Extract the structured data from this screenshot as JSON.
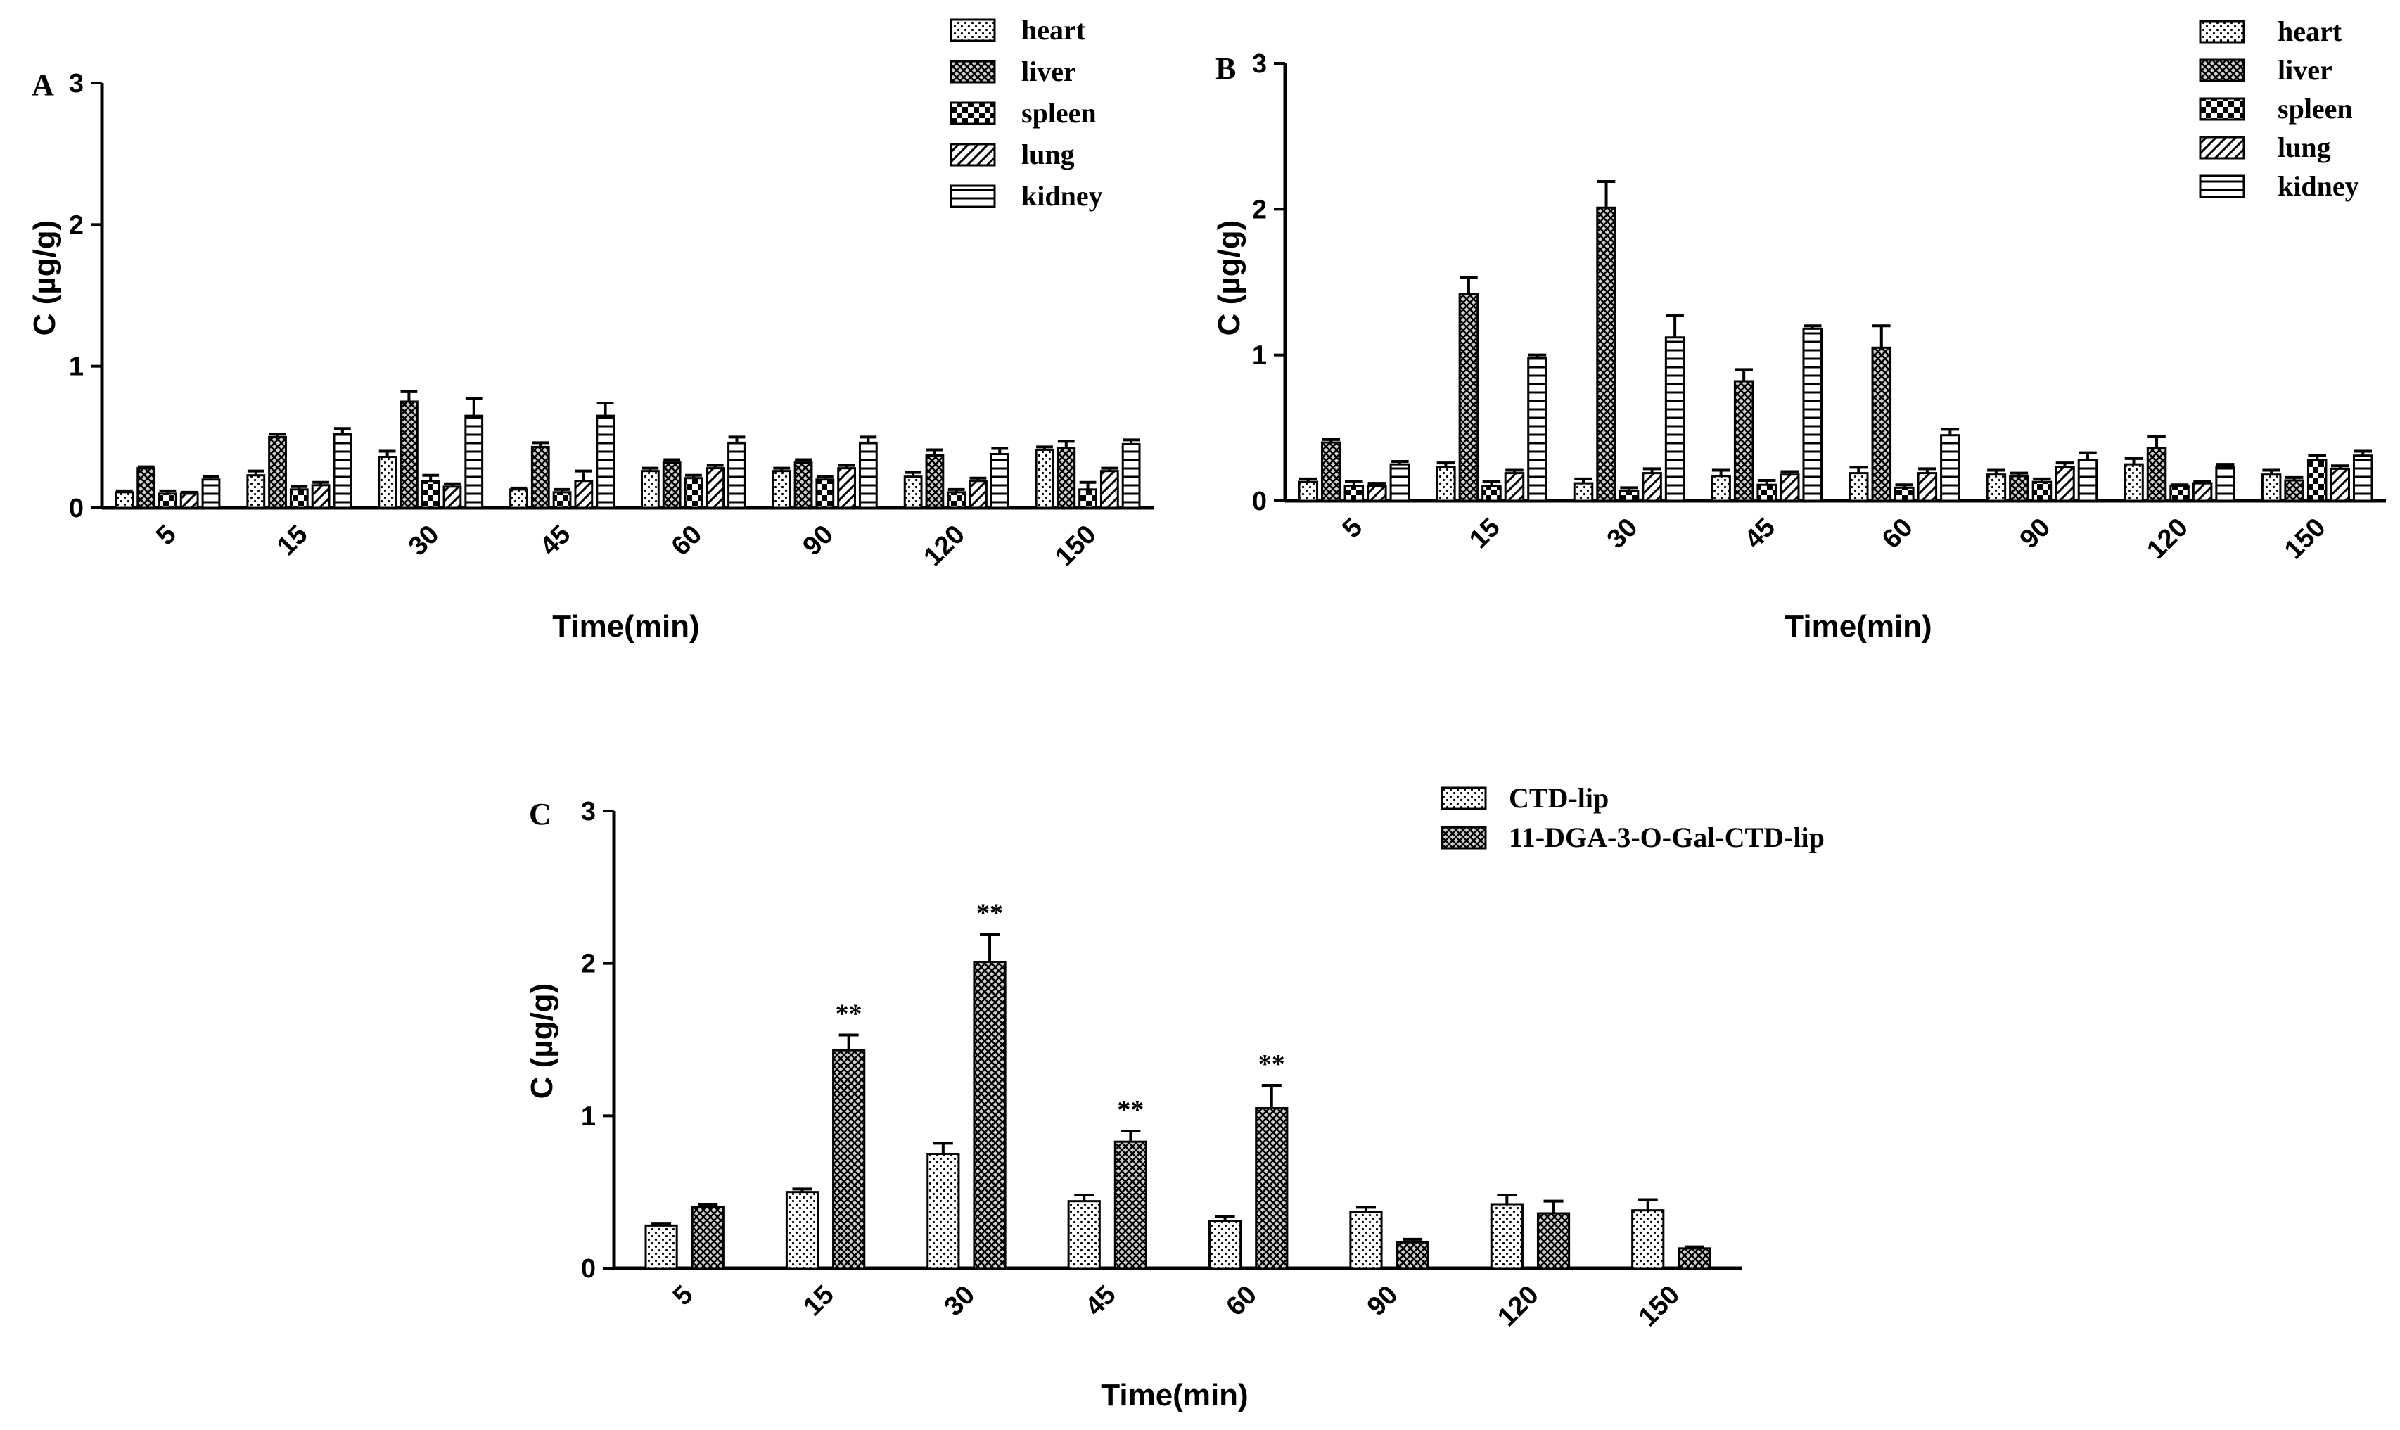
{
  "chart_data": [
    {
      "panel": "A",
      "type": "bar",
      "xlabel": "Time(min)",
      "ylabel": "C (µg/g)",
      "ylim": [
        0,
        3
      ],
      "yticks": [
        "0",
        "1",
        "2",
        "3"
      ],
      "categories": [
        "5",
        "15",
        "30",
        "45",
        "60",
        "90",
        "120",
        "150"
      ],
      "series": [
        {
          "name": "heart",
          "pattern": "dots",
          "values": [
            0.11,
            0.23,
            0.36,
            0.13,
            0.26,
            0.26,
            0.22,
            0.41
          ],
          "errors": [
            0.01,
            0.03,
            0.04,
            0.01,
            0.02,
            0.02,
            0.03,
            0.02
          ]
        },
        {
          "name": "liver",
          "pattern": "cross",
          "values": [
            0.28,
            0.5,
            0.75,
            0.43,
            0.32,
            0.32,
            0.37,
            0.42
          ],
          "errors": [
            0.01,
            0.02,
            0.07,
            0.03,
            0.02,
            0.02,
            0.04,
            0.05
          ]
        },
        {
          "name": "spleen",
          "pattern": "checker",
          "values": [
            0.1,
            0.13,
            0.19,
            0.11,
            0.21,
            0.2,
            0.11,
            0.13
          ],
          "errors": [
            0.02,
            0.02,
            0.04,
            0.02,
            0.02,
            0.02,
            0.02,
            0.05
          ]
        },
        {
          "name": "lung",
          "pattern": "diag",
          "values": [
            0.1,
            0.16,
            0.15,
            0.19,
            0.28,
            0.28,
            0.19,
            0.26
          ],
          "errors": [
            0.01,
            0.02,
            0.02,
            0.07,
            0.02,
            0.02,
            0.02,
            0.02
          ]
        },
        {
          "name": "kidney",
          "pattern": "hlines",
          "values": [
            0.2,
            0.52,
            0.65,
            0.65,
            0.46,
            0.46,
            0.38,
            0.45
          ],
          "errors": [
            0.02,
            0.04,
            0.12,
            0.09,
            0.04,
            0.04,
            0.04,
            0.03
          ]
        }
      ]
    },
    {
      "panel": "B",
      "type": "bar",
      "xlabel": "Time(min)",
      "ylabel": "C (µg/g)",
      "ylim": [
        0,
        3
      ],
      "yticks": [
        "0",
        "1",
        "2",
        "3"
      ],
      "categories": [
        "5",
        "15",
        "30",
        "45",
        "60",
        "90",
        "120",
        "150"
      ],
      "series": [
        {
          "name": "heart",
          "pattern": "dots",
          "values": [
            0.13,
            0.23,
            0.12,
            0.17,
            0.19,
            0.18,
            0.25,
            0.18
          ],
          "errors": [
            0.02,
            0.03,
            0.03,
            0.04,
            0.04,
            0.03,
            0.04,
            0.03
          ]
        },
        {
          "name": "liver",
          "pattern": "cross",
          "values": [
            0.4,
            1.42,
            2.01,
            0.82,
            1.05,
            0.17,
            0.36,
            0.14
          ],
          "errors": [
            0.02,
            0.11,
            0.18,
            0.08,
            0.15,
            0.02,
            0.08,
            0.02
          ]
        },
        {
          "name": "spleen",
          "pattern": "checker",
          "values": [
            0.1,
            0.1,
            0.07,
            0.11,
            0.09,
            0.13,
            0.1,
            0.28
          ],
          "errors": [
            0.03,
            0.03,
            0.02,
            0.03,
            0.02,
            0.02,
            0.01,
            0.03
          ]
        },
        {
          "name": "lung",
          "pattern": "diag",
          "values": [
            0.1,
            0.19,
            0.19,
            0.18,
            0.19,
            0.23,
            0.12,
            0.22
          ],
          "errors": [
            0.02,
            0.02,
            0.03,
            0.02,
            0.03,
            0.03,
            0.01,
            0.02
          ]
        },
        {
          "name": "kidney",
          "pattern": "hlines",
          "values": [
            0.25,
            0.98,
            1.12,
            1.18,
            0.45,
            0.28,
            0.23,
            0.31
          ],
          "errors": [
            0.02,
            0.02,
            0.15,
            0.02,
            0.04,
            0.05,
            0.02,
            0.03
          ]
        }
      ]
    },
    {
      "panel": "C",
      "type": "bar",
      "xlabel": "Time(min)",
      "ylabel": "C (µg/g)",
      "ylim": [
        0,
        3
      ],
      "yticks": [
        "0",
        "1",
        "2",
        "3"
      ],
      "categories": [
        "5",
        "15",
        "30",
        "45",
        "60",
        "90",
        "120",
        "150"
      ],
      "series": [
        {
          "name": "CTD-lip",
          "pattern": "dots",
          "values": [
            0.28,
            0.5,
            0.75,
            0.44,
            0.31,
            0.37,
            0.42,
            0.38
          ],
          "errors": [
            0.01,
            0.02,
            0.07,
            0.04,
            0.03,
            0.03,
            0.06,
            0.07
          ]
        },
        {
          "name": "11-DGA-3-O-Gal-CTD-lip",
          "pattern": "cross",
          "values": [
            0.4,
            1.43,
            2.01,
            0.83,
            1.05,
            0.17,
            0.36,
            0.13
          ],
          "errors": [
            0.02,
            0.1,
            0.18,
            0.07,
            0.15,
            0.02,
            0.08,
            0.01
          ]
        }
      ],
      "annotations": [
        {
          "category": "15",
          "text": "**"
        },
        {
          "category": "30",
          "text": "**"
        },
        {
          "category": "45",
          "text": "**"
        },
        {
          "category": "60",
          "text": "**"
        }
      ]
    }
  ]
}
